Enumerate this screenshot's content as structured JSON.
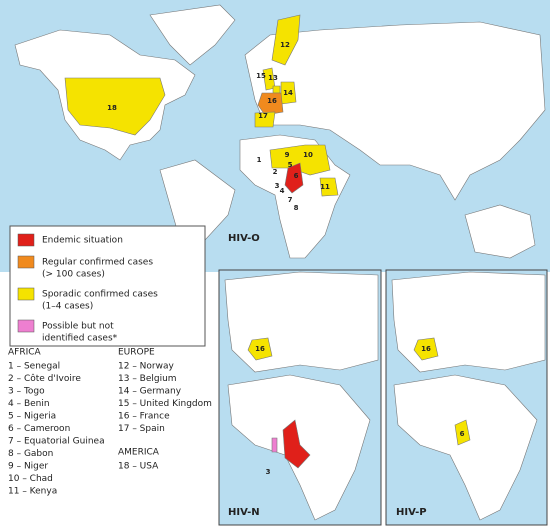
{
  "legend": {
    "items": [
      {
        "lines": [
          "Endemic situation"
        ]
      },
      {
        "lines": [
          "Regular confirmed cases",
          "(> 100 cases)"
        ]
      },
      {
        "lines": [
          "Sporadic confirmed cases",
          "(1–4 cases)"
        ]
      },
      {
        "lines": [
          "Possible but not",
          "identified cases*"
        ]
      }
    ]
  },
  "key": {
    "africa": {
      "heading": "AFRICA",
      "items": [
        "1 – Senegal",
        "2 – Côte d'Ivoire",
        "3 – Togo",
        "4 – Benin",
        "5 – Nigeria",
        "6 – Cameroon",
        "7 – Equatorial Guinea",
        "8 – Gabon",
        "9 – Niger",
        "10 – Chad",
        "11 – Kenya"
      ]
    },
    "europe": {
      "heading": "EUROPE",
      "items": [
        "12 – Norway",
        "13 – Belgium",
        "14 – Germany",
        "15 – United Kingdom",
        "16 – France",
        "17 – Spain"
      ]
    },
    "america": {
      "heading": "AMERICA",
      "items": [
        "18 – USA"
      ]
    }
  },
  "maps": {
    "hiv_o": {
      "label": "HIV-O",
      "markers": [
        "1",
        "2",
        "3",
        "4",
        "5",
        "6",
        "7",
        "8",
        "9",
        "10",
        "11",
        "12",
        "13",
        "14",
        "15",
        "16",
        "17",
        "18"
      ]
    },
    "hiv_n": {
      "label": "HIV-N",
      "markers": [
        "16",
        "3"
      ]
    },
    "hiv_p": {
      "label": "HIV-P",
      "markers": [
        "16",
        "6"
      ]
    }
  }
}
